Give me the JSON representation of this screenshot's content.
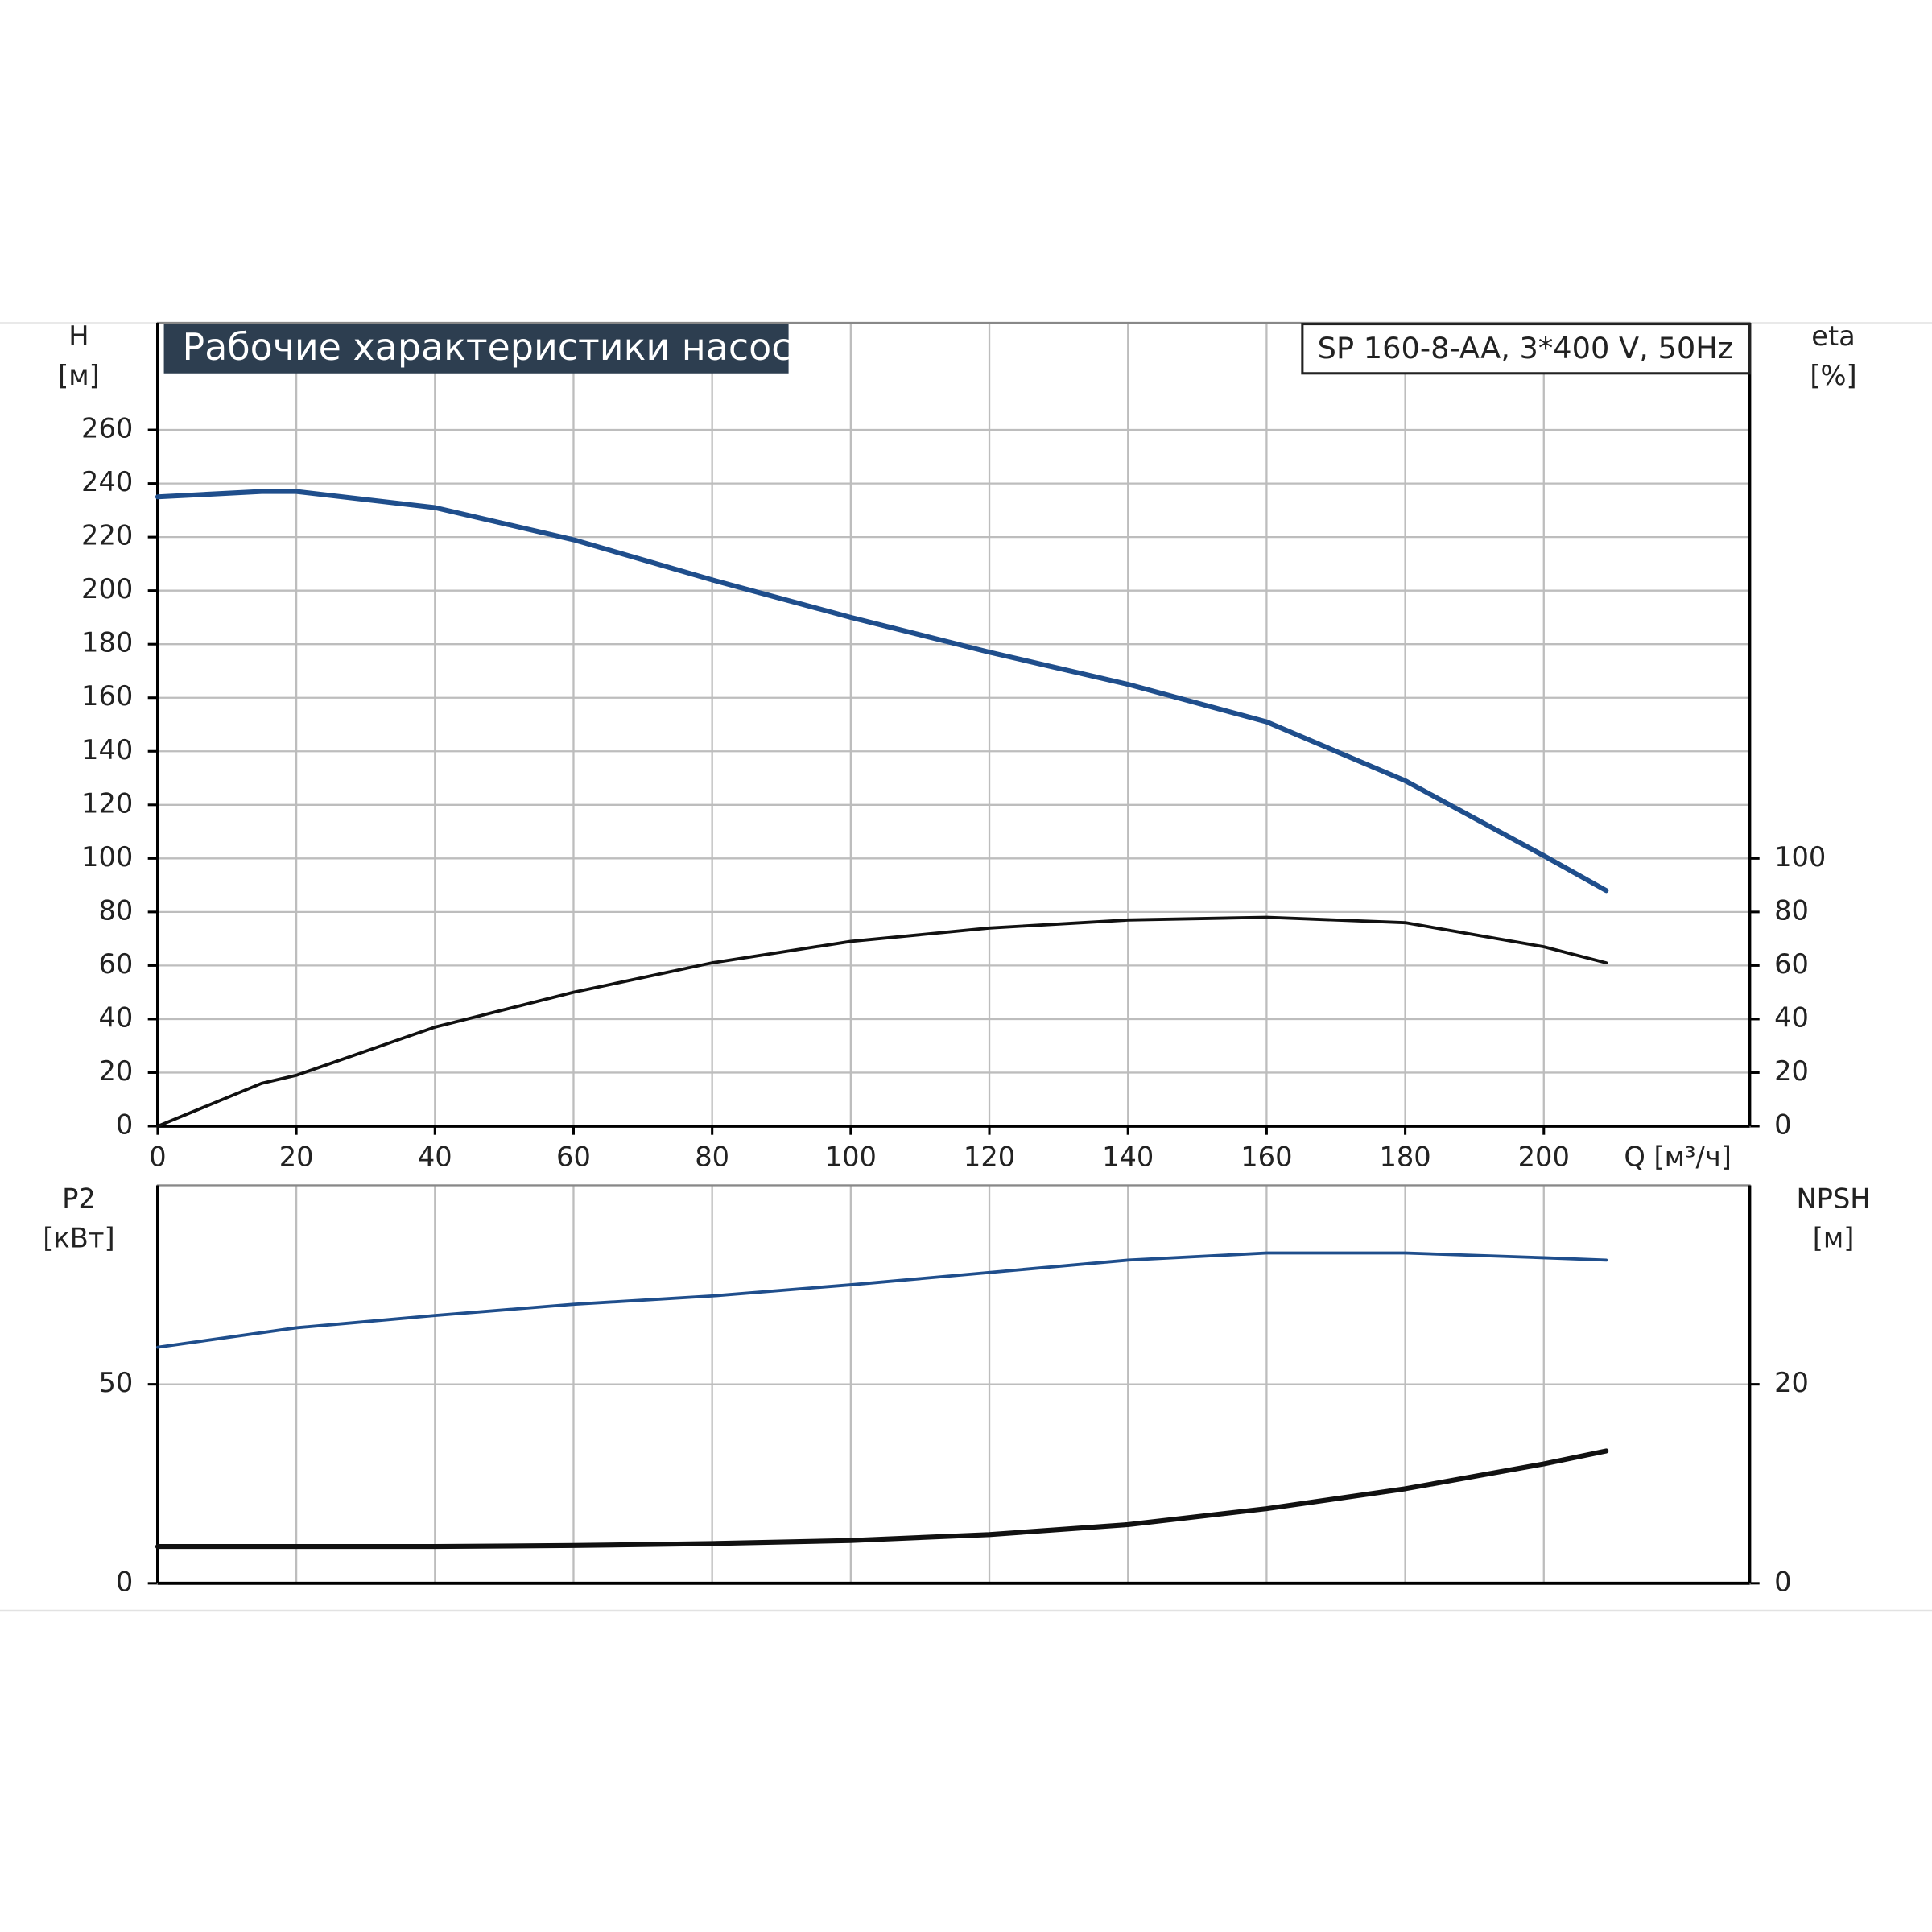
{
  "chart_data": [
    {
      "type": "line",
      "title": "Рабочие характеристики насоса",
      "subtitle": "SP 160-8-AA, 3*400 V, 50Hz",
      "ylabel": "H",
      "yunit": "[м]",
      "y2label": "eta",
      "y2unit": "[%]",
      "xlabel": "Q [м³/ч]",
      "xlim": [
        0,
        229.7
      ],
      "xticks": [
        0,
        20,
        40,
        60,
        80,
        100,
        120,
        140,
        160,
        180,
        200
      ],
      "ylim": [
        0,
        300
      ],
      "yticks": [
        0,
        20,
        40,
        60,
        80,
        100,
        120,
        140,
        160,
        180,
        200,
        220,
        240,
        260
      ],
      "y2lim": [
        0,
        300
      ],
      "y2ticks": [
        0,
        20,
        40,
        60,
        80,
        100
      ],
      "grid": true,
      "x": [
        0,
        15,
        20,
        40,
        60,
        80,
        100,
        120,
        140,
        160,
        180,
        200,
        209
      ],
      "series": [
        {
          "color": "#1f4e8c",
          "values": [
            235,
            237,
            237,
            231,
            219,
            204,
            190,
            177,
            165,
            151,
            129,
            101,
            88
          ]
        },
        {
          "color": "#111111",
          "axis": "y2",
          "values": [
            0,
            16,
            19,
            37,
            50,
            61,
            69,
            74,
            77,
            78,
            76,
            67,
            61
          ]
        }
      ]
    },
    {
      "type": "line",
      "ylabel": "P2",
      "yunit": "[кВт]",
      "y2label": "NPSH",
      "y2unit": "[м]",
      "xlim": [
        0,
        229.7
      ],
      "ylim": [
        0,
        100
      ],
      "yticks": [
        0,
        50
      ],
      "y2lim": [
        0,
        40
      ],
      "y2ticks": [
        0,
        20
      ],
      "grid": true,
      "x": [
        0,
        20,
        40,
        60,
        80,
        100,
        120,
        140,
        160,
        180,
        200,
        209
      ],
      "series": [
        {
          "color": "#1f4e8c",
          "values": [
            59.3,
            64.2,
            67.3,
            70.1,
            72.2,
            75,
            78.1,
            81.2,
            83,
            83,
            81.8,
            81.2
          ]
        },
        {
          "color": "#111111",
          "axis": "y2",
          "values": [
            3.7,
            3.7,
            3.7,
            3.8,
            4.0,
            4.3,
            4.9,
            5.9,
            7.5,
            9.5,
            12.0,
            13.3
          ]
        }
      ]
    }
  ]
}
